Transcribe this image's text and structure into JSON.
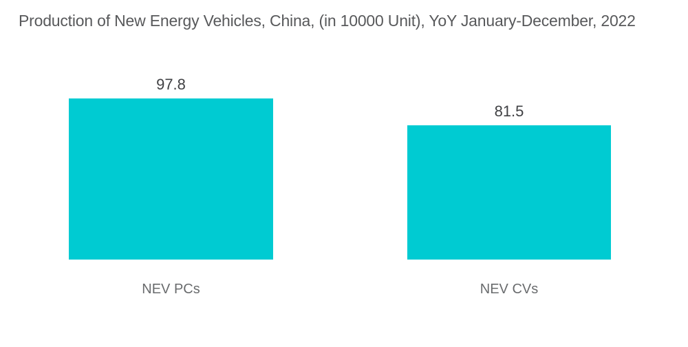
{
  "title": "Production of New Energy Vehicles, China, (in 10000 Unit), YoY January-December, 2022",
  "colors": {
    "background": "#FFFFFF",
    "bar": "#00CBD2",
    "title_text": "#58595B",
    "value_text": "#3F4043",
    "category_text": "#696B6D"
  },
  "chart_data": {
    "type": "bar",
    "title": "Production of New Energy Vehicles, China, (in 10000 Unit), YoY January-December, 2022",
    "categories": [
      "NEV PCs",
      "NEV CVs"
    ],
    "values": [
      97.8,
      81.5
    ],
    "value_labels": [
      "97.8",
      "81.5"
    ],
    "xlabel": "",
    "ylabel": "",
    "ylim": [
      0,
      100
    ],
    "grid": false,
    "legend": "none",
    "orientation": "vertical",
    "bar_color": "#00CBD2"
  }
}
